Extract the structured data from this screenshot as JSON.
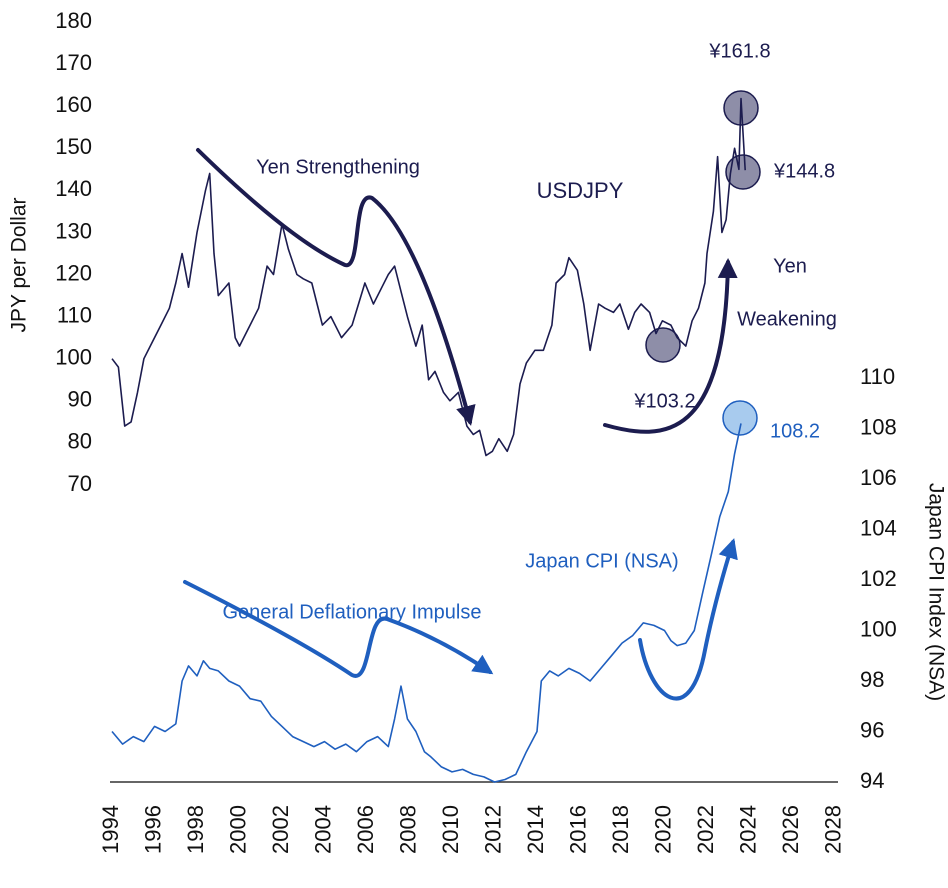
{
  "chart_data": {
    "type": "line",
    "ylabel": "JPY per Dollar",
    "y2label": "Japan CPI Index (NSA)",
    "xlim": [
      1994,
      2028
    ],
    "xticks": [
      1994,
      1996,
      1998,
      2000,
      2002,
      2004,
      2006,
      2008,
      2010,
      2012,
      2014,
      2016,
      2018,
      2020,
      2022,
      2024,
      2026,
      2028
    ],
    "ylim": [
      70,
      180
    ],
    "yticks": [
      70,
      80,
      90,
      100,
      110,
      120,
      130,
      140,
      150,
      160,
      170,
      180
    ],
    "y2lim": [
      94,
      110
    ],
    "y2ticks": [
      94,
      96,
      98,
      100,
      102,
      104,
      106,
      108,
      110
    ],
    "series": [
      {
        "name": "USDJPY",
        "color": "#1c1c4f",
        "axis": "y",
        "x": [
          1994.0,
          1994.3,
          1994.6,
          1994.9,
          1995.2,
          1995.5,
          1995.9,
          1996.3,
          1996.7,
          1997.0,
          1997.3,
          1997.6,
          1998.0,
          1998.4,
          1998.6,
          1998.8,
          1999.0,
          1999.5,
          1999.8,
          2000.0,
          2000.5,
          2000.9,
          2001.3,
          2001.6,
          2002.0,
          2002.3,
          2002.7,
          2003.0,
          2003.4,
          2003.9,
          2004.3,
          2004.8,
          2005.3,
          2005.9,
          2006.3,
          2006.7,
          2007.0,
          2007.3,
          2007.6,
          2007.9,
          2008.3,
          2008.6,
          2008.9,
          2009.2,
          2009.6,
          2009.9,
          2010.3,
          2010.7,
          2011.0,
          2011.3,
          2011.6,
          2011.9,
          2012.2,
          2012.6,
          2012.9,
          2013.2,
          2013.5,
          2013.9,
          2014.3,
          2014.7,
          2014.9,
          2015.3,
          2015.5,
          2015.9,
          2016.2,
          2016.5,
          2016.9,
          2017.2,
          2017.6,
          2017.9,
          2018.3,
          2018.6,
          2018.9,
          2019.3,
          2019.6,
          2019.9,
          2020.3,
          2020.6,
          2021.0,
          2021.3,
          2021.6,
          2021.9,
          2022.0,
          2022.3,
          2022.5,
          2022.7,
          2022.9,
          2023.1,
          2023.3,
          2023.5,
          2023.6,
          2023.8
        ],
        "values": [
          100,
          98,
          84,
          85,
          92,
          100,
          104,
          108,
          112,
          118,
          125,
          117,
          130,
          140,
          144,
          125,
          115,
          118,
          105,
          103,
          108,
          112,
          122,
          120,
          132,
          126,
          120,
          119,
          118,
          108,
          110,
          105,
          108,
          118,
          113,
          117,
          120,
          122,
          116,
          110,
          103,
          108,
          95,
          97,
          92,
          90,
          92,
          84,
          82,
          83,
          77,
          78,
          81,
          78,
          82,
          94,
          99,
          102,
          102,
          108,
          118,
          120,
          124,
          121,
          113,
          102,
          113,
          112,
          111,
          113,
          107,
          111,
          113,
          111,
          106,
          109,
          108,
          105,
          103,
          109,
          112,
          118,
          125,
          135,
          148,
          130,
          133,
          144,
          150,
          145,
          161.8,
          144.8
        ]
      },
      {
        "name": "Japan CPI (NSA)",
        "color": "#1f5fbf",
        "axis": "y2",
        "x": [
          1994.0,
          1994.5,
          1995.0,
          1995.5,
          1996.0,
          1996.5,
          1997.0,
          1997.3,
          1997.6,
          1998.0,
          1998.3,
          1998.6,
          1999.0,
          1999.5,
          2000.0,
          2000.5,
          2001.0,
          2001.5,
          2002.0,
          2002.5,
          2003.0,
          2003.5,
          2004.0,
          2004.5,
          2005.0,
          2005.5,
          2006.0,
          2006.5,
          2007.0,
          2007.3,
          2007.6,
          2007.9,
          2008.3,
          2008.7,
          2009.0,
          2009.5,
          2010.0,
          2010.5,
          2011.0,
          2011.5,
          2012.0,
          2012.5,
          2013.0,
          2013.5,
          2014.0,
          2014.2,
          2014.6,
          2015.0,
          2015.5,
          2016.0,
          2016.5,
          2017.0,
          2017.5,
          2018.0,
          2018.5,
          2019.0,
          2019.5,
          2020.0,
          2020.3,
          2020.6,
          2021.0,
          2021.4,
          2021.8,
          2022.2,
          2022.6,
          2023.0,
          2023.3,
          2023.6
        ],
        "values": [
          96,
          95.5,
          95.8,
          95.6,
          96.2,
          96,
          96.3,
          98,
          98.6,
          98.2,
          98.8,
          98.5,
          98.4,
          98,
          97.8,
          97.3,
          97.2,
          96.6,
          96.2,
          95.8,
          95.6,
          95.4,
          95.6,
          95.3,
          95.5,
          95.2,
          95.6,
          95.8,
          95.4,
          96.5,
          97.8,
          96.5,
          96,
          95.2,
          95,
          94.6,
          94.4,
          94.5,
          94.3,
          94.2,
          94,
          94.1,
          94.3,
          95.2,
          96,
          98,
          98.4,
          98.2,
          98.5,
          98.3,
          98,
          98.5,
          99,
          99.5,
          99.8,
          100.3,
          100.2,
          100,
          99.6,
          99.4,
          99.5,
          100,
          101.5,
          103,
          104.5,
          105.5,
          107,
          108.2
        ]
      }
    ],
    "annotations": [
      "Yen Strengthening",
      "Yen",
      "Weakening",
      "¥161.8",
      "¥144.8",
      "¥103.2",
      "108.2",
      "General Deflationary Impulse"
    ]
  }
}
